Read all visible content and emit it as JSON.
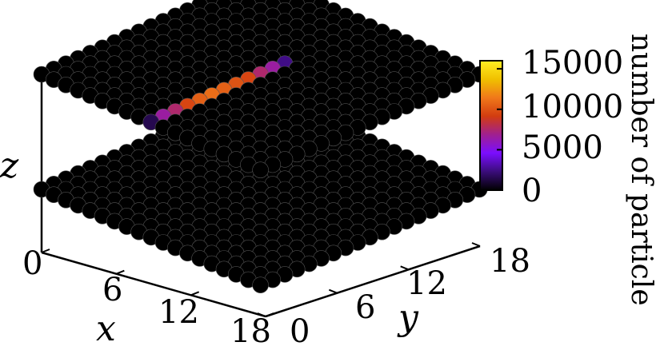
{
  "chart_data": {
    "type": "scatter",
    "subtype": "3d-lattice-bilayer",
    "grid": false,
    "x": {
      "label": "x",
      "ticks": [
        "0",
        "6",
        "12",
        "18"
      ],
      "range": [
        0,
        18
      ]
    },
    "y": {
      "label": "y",
      "ticks": [
        "0",
        "6",
        "12",
        "18"
      ],
      "range": [
        0,
        18
      ]
    },
    "z": {
      "label": "z",
      "layers": 2
    },
    "lattice": {
      "nx": 19,
      "ny": 19,
      "default_value": 0
    },
    "colorbar": {
      "label": "number of particle",
      "ticks": [
        "0",
        "5000",
        "10000",
        "15000"
      ],
      "tick_values": [
        0,
        5000,
        10000,
        15000
      ],
      "range": [
        0,
        16000
      ],
      "colors": [
        "#000000",
        "#3a0d7a",
        "#7a0dff",
        "#a02090",
        "#d23c10",
        "#f0781a",
        "#f0c000",
        "#ffee22"
      ]
    },
    "highlighted_points": {
      "layer": "top",
      "x": 9,
      "y": [
        0,
        1,
        2,
        3,
        4,
        5,
        6,
        7,
        8,
        9,
        10,
        11
      ],
      "values": [
        1500,
        6500,
        7500,
        9500,
        10500,
        11000,
        10500,
        10000,
        9500,
        7500,
        6500,
        2500
      ]
    }
  }
}
